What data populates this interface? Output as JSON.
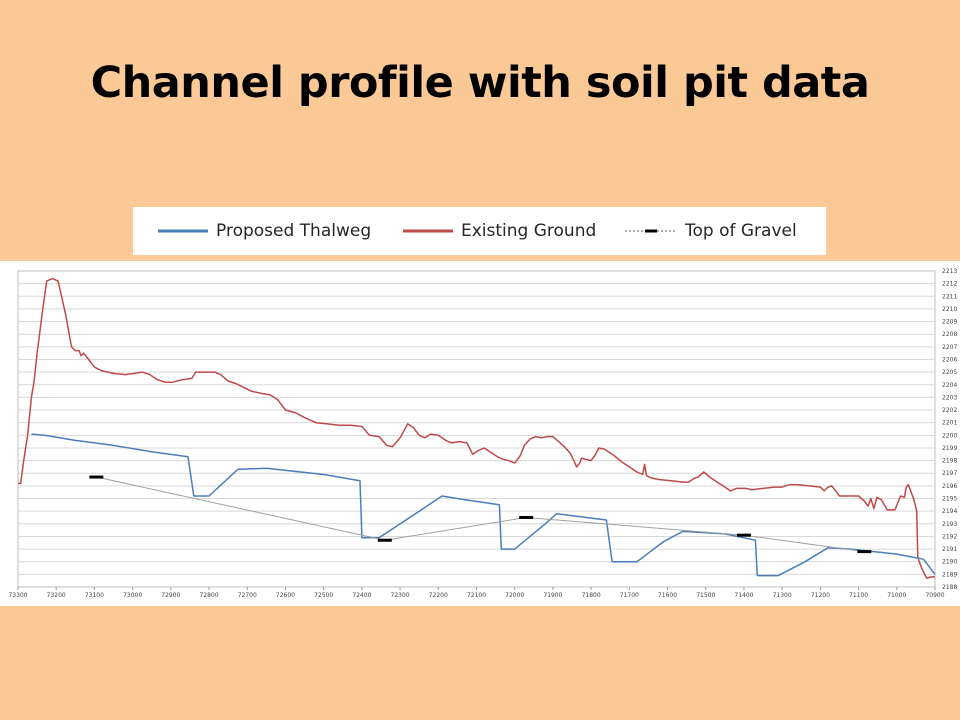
{
  "slide": {
    "title": "Channel profile with soil pit data"
  },
  "colors": {
    "background": "#fac995",
    "thalweg": "#4a7ebb",
    "ground": "#be4b48",
    "gravel_marker": "#000000",
    "gravel_line": "#a0a0a0",
    "grid": "#d9d9d9"
  },
  "chart_data": {
    "type": "line",
    "xlim": [
      73300,
      70900
    ],
    "ylim": [
      2188,
      2213
    ],
    "x_reversed": true,
    "grid": true,
    "legend_position": "top",
    "x_ticks": [
      73300,
      73200,
      73100,
      73000,
      72900,
      72800,
      72700,
      72600,
      72500,
      72400,
      72300,
      72200,
      72100,
      72000,
      71900,
      71800,
      71700,
      71600,
      71500,
      71400,
      71300,
      71200,
      71100,
      71000,
      70900
    ],
    "y_ticks": [
      2188,
      2189,
      2190,
      2191,
      2192,
      2193,
      2194,
      2195,
      2196,
      2197,
      2198,
      2199,
      2200,
      2201,
      2202,
      2203,
      2204,
      2205,
      2206,
      2207,
      2208,
      2209,
      2210,
      2211,
      2212,
      2213
    ],
    "series": [
      {
        "name": "Proposed Thalweg",
        "legend_label": "Proposed Thalweg",
        "style": "line",
        "color": "#4a7ebb",
        "points": [
          [
            73265,
            2200.1
          ],
          [
            73230,
            2200.0
          ],
          [
            73150,
            2199.6
          ],
          [
            73050,
            2199.2
          ],
          [
            72950,
            2198.7
          ],
          [
            72855,
            2198.3
          ],
          [
            72840,
            2195.2
          ],
          [
            72800,
            2195.2
          ],
          [
            72725,
            2197.3
          ],
          [
            72650,
            2197.4
          ],
          [
            72500,
            2196.9
          ],
          [
            72405,
            2196.4
          ],
          [
            72400,
            2191.9
          ],
          [
            72355,
            2191.9
          ],
          [
            72250,
            2194.0
          ],
          [
            72190,
            2195.2
          ],
          [
            72130,
            2194.9
          ],
          [
            72040,
            2194.5
          ],
          [
            72035,
            2191.0
          ],
          [
            72000,
            2191.0
          ],
          [
            71920,
            2193.0
          ],
          [
            71890,
            2193.8
          ],
          [
            71760,
            2193.3
          ],
          [
            71745,
            2190.0
          ],
          [
            71680,
            2190.0
          ],
          [
            71610,
            2191.6
          ],
          [
            71560,
            2192.4
          ],
          [
            71450,
            2192.2
          ],
          [
            71370,
            2191.7
          ],
          [
            71365,
            2188.9
          ],
          [
            71310,
            2188.9
          ],
          [
            71240,
            2190.0
          ],
          [
            71180,
            2191.1
          ],
          [
            71120,
            2191.0
          ],
          [
            71000,
            2190.6
          ],
          [
            70930,
            2190.2
          ],
          [
            70900,
            2189.0
          ]
        ]
      },
      {
        "name": "Existing Ground",
        "legend_label": "Existing Ground",
        "style": "line",
        "color": "#be4b48",
        "points": [
          [
            73300,
            2196.2
          ],
          [
            73293,
            2196.2
          ],
          [
            73285,
            2198.0
          ],
          [
            73275,
            2200.0
          ],
          [
            73265,
            2203.0
          ],
          [
            73258,
            2204.2
          ],
          [
            73250,
            2206.5
          ],
          [
            73235,
            2210.0
          ],
          [
            73225,
            2212.2
          ],
          [
            73210,
            2212.4
          ],
          [
            73195,
            2212.2
          ],
          [
            73175,
            2209.5
          ],
          [
            73160,
            2207.0
          ],
          [
            73150,
            2206.7
          ],
          [
            73140,
            2206.7
          ],
          [
            73135,
            2206.3
          ],
          [
            73128,
            2206.5
          ],
          [
            73115,
            2206.0
          ],
          [
            73100,
            2205.4
          ],
          [
            73080,
            2205.1
          ],
          [
            73050,
            2204.9
          ],
          [
            73020,
            2204.8
          ],
          [
            72995,
            2204.9
          ],
          [
            72975,
            2205.0
          ],
          [
            72955,
            2204.8
          ],
          [
            72935,
            2204.4
          ],
          [
            72915,
            2204.2
          ],
          [
            72895,
            2204.2
          ],
          [
            72870,
            2204.4
          ],
          [
            72845,
            2204.5
          ],
          [
            72835,
            2205.0
          ],
          [
            72800,
            2205.0
          ],
          [
            72785,
            2205.0
          ],
          [
            72770,
            2204.8
          ],
          [
            72750,
            2204.3
          ],
          [
            72730,
            2204.1
          ],
          [
            72710,
            2203.8
          ],
          [
            72690,
            2203.5
          ],
          [
            72660,
            2203.3
          ],
          [
            72640,
            2203.2
          ],
          [
            72620,
            2202.8
          ],
          [
            72600,
            2202.0
          ],
          [
            72575,
            2201.8
          ],
          [
            72550,
            2201.4
          ],
          [
            72520,
            2201.0
          ],
          [
            72490,
            2200.9
          ],
          [
            72460,
            2200.8
          ],
          [
            72430,
            2200.8
          ],
          [
            72400,
            2200.7
          ],
          [
            72380,
            2200.0
          ],
          [
            72355,
            2199.9
          ],
          [
            72335,
            2199.2
          ],
          [
            72320,
            2199.1
          ],
          [
            72300,
            2199.8
          ],
          [
            72280,
            2200.9
          ],
          [
            72265,
            2200.6
          ],
          [
            72250,
            2200.0
          ],
          [
            72235,
            2199.8
          ],
          [
            72220,
            2200.1
          ],
          [
            72200,
            2200.0
          ],
          [
            72180,
            2199.6
          ],
          [
            72165,
            2199.4
          ],
          [
            72145,
            2199.5
          ],
          [
            72125,
            2199.4
          ],
          [
            72110,
            2198.5
          ],
          [
            72095,
            2198.8
          ],
          [
            72080,
            2199.0
          ],
          [
            72060,
            2198.6
          ],
          [
            72045,
            2198.3
          ],
          [
            72030,
            2198.1
          ],
          [
            72015,
            2198.0
          ],
          [
            72000,
            2197.8
          ],
          [
            71985,
            2198.4
          ],
          [
            71975,
            2199.2
          ],
          [
            71960,
            2199.7
          ],
          [
            71945,
            2199.9
          ],
          [
            71930,
            2199.8
          ],
          [
            71915,
            2199.9
          ],
          [
            71900,
            2199.9
          ],
          [
            71885,
            2199.5
          ],
          [
            71870,
            2199.1
          ],
          [
            71855,
            2198.6
          ],
          [
            71845,
            2198.0
          ],
          [
            71838,
            2197.5
          ],
          [
            71830,
            2197.8
          ],
          [
            71825,
            2198.2
          ],
          [
            71815,
            2198.1
          ],
          [
            71800,
            2198.0
          ],
          [
            71790,
            2198.4
          ],
          [
            71780,
            2199.0
          ],
          [
            71765,
            2198.9
          ],
          [
            71740,
            2198.4
          ],
          [
            71720,
            2197.9
          ],
          [
            71700,
            2197.5
          ],
          [
            71680,
            2197.1
          ],
          [
            71665,
            2196.9
          ],
          [
            71660,
            2197.7
          ],
          [
            71655,
            2196.8
          ],
          [
            71640,
            2196.6
          ],
          [
            71620,
            2196.5
          ],
          [
            71590,
            2196.4
          ],
          [
            71560,
            2196.3
          ],
          [
            71545,
            2196.3
          ],
          [
            71530,
            2196.6
          ],
          [
            71520,
            2196.7
          ],
          [
            71505,
            2197.1
          ],
          [
            71490,
            2196.7
          ],
          [
            71470,
            2196.3
          ],
          [
            71450,
            2195.9
          ],
          [
            71435,
            2195.6
          ],
          [
            71420,
            2195.8
          ],
          [
            71395,
            2195.8
          ],
          [
            71380,
            2195.7
          ],
          [
            71350,
            2195.8
          ],
          [
            71320,
            2195.9
          ],
          [
            71300,
            2195.9
          ],
          [
            71280,
            2196.1
          ],
          [
            71260,
            2196.1
          ],
          [
            71230,
            2196.0
          ],
          [
            71200,
            2195.9
          ],
          [
            71190,
            2195.6
          ],
          [
            71180,
            2195.9
          ],
          [
            71170,
            2196.0
          ],
          [
            71160,
            2195.6
          ],
          [
            71150,
            2195.2
          ],
          [
            71120,
            2195.2
          ],
          [
            71100,
            2195.2
          ],
          [
            71085,
            2194.8
          ],
          [
            71075,
            2194.4
          ],
          [
            71068,
            2195.0
          ],
          [
            71060,
            2194.2
          ],
          [
            71052,
            2195.1
          ],
          [
            71040,
            2194.9
          ],
          [
            71025,
            2194.1
          ],
          [
            71005,
            2194.1
          ],
          [
            70990,
            2195.2
          ],
          [
            70980,
            2195.1
          ],
          [
            70975,
            2195.9
          ],
          [
            70970,
            2196.1
          ],
          [
            70955,
            2194.9
          ],
          [
            70948,
            2194.0
          ],
          [
            70945,
            2190.3
          ],
          [
            70935,
            2189.5
          ],
          [
            70922,
            2188.7
          ],
          [
            70910,
            2188.8
          ],
          [
            70900,
            2188.8
          ]
        ]
      },
      {
        "name": "Top of Gravel",
        "legend_label": "Top of Gravel",
        "style": "dashed-with-markers",
        "color": "#000000",
        "line_color": "#a0a0a0",
        "points": [
          [
            73095,
            2196.7
          ],
          [
            72340,
            2191.7
          ],
          [
            71970,
            2193.5
          ],
          [
            71400,
            2192.1
          ],
          [
            71085,
            2190.8
          ]
        ]
      }
    ]
  }
}
